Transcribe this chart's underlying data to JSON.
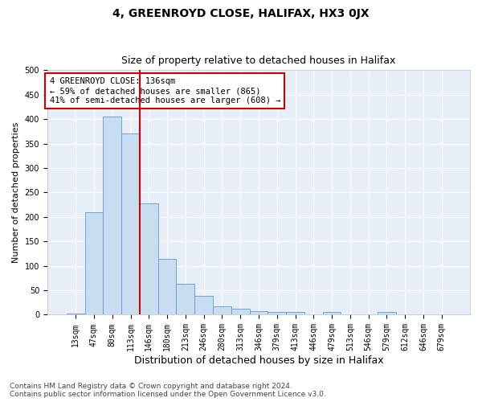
{
  "title": "4, GREENROYD CLOSE, HALIFAX, HX3 0JX",
  "subtitle": "Size of property relative to detached houses in Halifax",
  "xlabel": "Distribution of detached houses by size in Halifax",
  "ylabel": "Number of detached properties",
  "categories": [
    "13sqm",
    "47sqm",
    "80sqm",
    "113sqm",
    "146sqm",
    "180sqm",
    "213sqm",
    "246sqm",
    "280sqm",
    "313sqm",
    "346sqm",
    "379sqm",
    "413sqm",
    "446sqm",
    "479sqm",
    "513sqm",
    "546sqm",
    "579sqm",
    "612sqm",
    "646sqm",
    "679sqm"
  ],
  "values": [
    2,
    210,
    405,
    370,
    228,
    115,
    63,
    38,
    17,
    13,
    7,
    6,
    6,
    1,
    6,
    1,
    1,
    6,
    1,
    1,
    1
  ],
  "bar_facecolor": "#c9ddf0",
  "bar_edgecolor": "#5b9bd5",
  "vline_x": 3.5,
  "vline_color": "#cc0000",
  "annotation_text": "4 GREENROYD CLOSE: 136sqm\n← 59% of detached houses are smaller (865)\n41% of semi-detached houses are larger (608) →",
  "annotation_box_edgecolor": "#cc0000",
  "background_color": "#ffffff",
  "plot_bg_color": "#e8eef8",
  "ylim": [
    0,
    500
  ],
  "yticks": [
    0,
    50,
    100,
    150,
    200,
    250,
    300,
    350,
    400,
    450,
    500
  ],
  "footer_text": "Contains HM Land Registry data © Crown copyright and database right 2024.\nContains public sector information licensed under the Open Government Licence v3.0.",
  "title_fontsize": 10,
  "subtitle_fontsize": 9,
  "xlabel_fontsize": 9,
  "ylabel_fontsize": 8,
  "tick_fontsize": 7,
  "annotation_fontsize": 7.5,
  "footer_fontsize": 6.5
}
